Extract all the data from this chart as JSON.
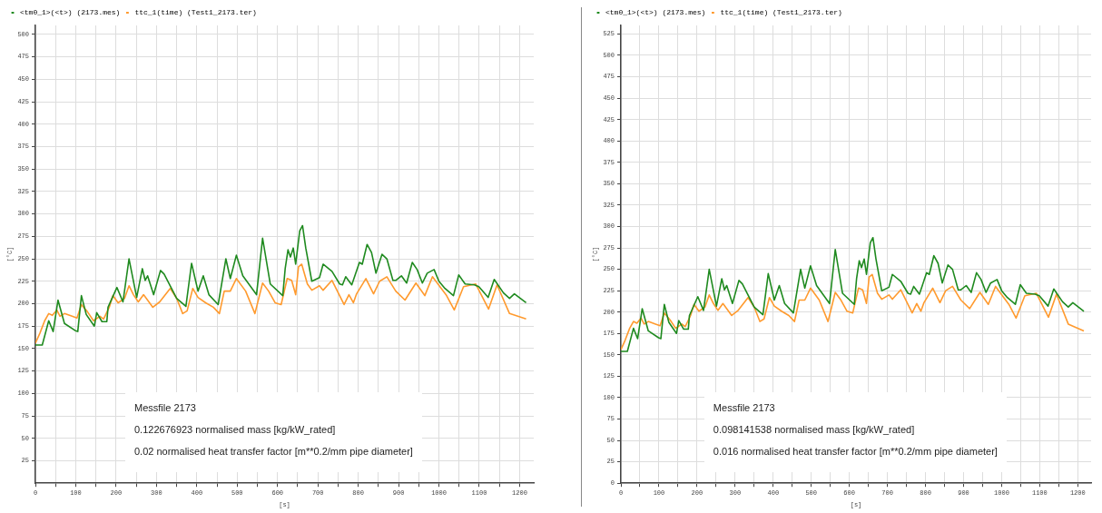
{
  "chart_data": [
    {
      "type": "line",
      "xlabel": "[s]",
      "ylabel": "[°C]",
      "legend": "top left",
      "grid": true,
      "marker": "none",
      "line_style": "solid",
      "xlim": [
        0,
        1235
      ],
      "ylim": [
        0,
        510
      ],
      "xticks": [
        0,
        {
          "value": 50,
          "label": null
        },
        100,
        {
          "value": 150,
          "label": null
        },
        200,
        {
          "value": 250,
          "label": null
        },
        300,
        {
          "value": 350,
          "label": null
        },
        400,
        {
          "value": 450,
          "label": null
        },
        500,
        {
          "value": 550,
          "label": null
        },
        600,
        {
          "value": 650,
          "label": null
        },
        700,
        {
          "value": 750,
          "label": null
        },
        800,
        {
          "value": 850,
          "label": null
        },
        900,
        {
          "value": 950,
          "label": null
        },
        1000,
        {
          "value": 1050,
          "label": null
        },
        1100,
        {
          "value": 1150,
          "label": null
        },
        1200
      ],
      "yticks": [
        25,
        50,
        75,
        100,
        125,
        150,
        175,
        200,
        225,
        250,
        275,
        300,
        325,
        350,
        375,
        400,
        425,
        450,
        475,
        500
      ],
      "annotations": [
        "Messfile 2173",
        "0.122676923 normalised mass [kg/kW_rated]",
        "0.02 normalised heat transfer factor [m**0.2/mm pipe diameter]"
      ],
      "series": [
        {
          "name": "<tm0_1>(<t>) (2173.mes)",
          "color": "#1f8a1f",
          "x": [
            0,
            17,
            33,
            44,
            56,
            72,
            99,
            105,
            114,
            126,
            146,
            152,
            165,
            177,
            180,
            202,
            217,
            232,
            251,
            265,
            272,
            278,
            293,
            310,
            319,
            350,
            373,
            387,
            403,
            416,
            430,
            453,
            472,
            483,
            498,
            514,
            548,
            563,
            582,
            613,
            619,
            626,
            632,
            639,
            645,
            655,
            662,
            670,
            685,
            704,
            713,
            735,
            754,
            761,
            769,
            784,
            803,
            810,
            822,
            833,
            844,
            859,
            871,
            886,
            893,
            907,
            920,
            934,
            946,
            959,
            971,
            988,
            1000,
            1015,
            1036,
            1049,
            1065,
            1088,
            1099,
            1122,
            1137,
            1160,
            1175,
            1187,
            1216
          ],
          "values": [
            154,
            154,
            181,
            169,
            204,
            178,
            170,
            169,
            209,
            188,
            175,
            190,
            180,
            180,
            196,
            218,
            202,
            250,
            207,
            239,
            226,
            231,
            210,
            237,
            233,
            206,
            197,
            245,
            214,
            231,
            210,
            199,
            250,
            228,
            254,
            231,
            210,
            273,
            222,
            209,
            239,
            260,
            252,
            262,
            244,
            281,
            287,
            262,
            225,
            229,
            244,
            236,
            222,
            221,
            230,
            221,
            246,
            244,
            266,
            257,
            234,
            255,
            250,
            226,
            226,
            231,
            223,
            246,
            238,
            223,
            234,
            238,
            225,
            217,
            209,
            232,
            222,
            221,
            219,
            207,
            227,
            212,
            206,
            211,
            201
          ]
        },
        {
          "name": "ttc_1(time) (Test1_2173.ter)",
          "color": "#ff9a2e",
          "x": [
            0,
            11,
            23,
            33,
            42,
            53,
            61,
            72,
            91,
            103,
            114,
            129,
            144,
            160,
            169,
            183,
            192,
            205,
            221,
            232,
            243,
            255,
            268,
            278,
            291,
            308,
            334,
            350,
            365,
            376,
            390,
            403,
            422,
            441,
            456,
            468,
            483,
            498,
            521,
            544,
            563,
            578,
            594,
            609,
            624,
            635,
            645,
            652,
            660,
            674,
            685,
            704,
            713,
            735,
            765,
            777,
            788,
            796,
            819,
            838,
            853,
            871,
            893,
            916,
            943,
            965,
            984,
            1019,
            1038,
            1061,
            1091,
            1123,
            1144,
            1175,
            1216
          ],
          "values": [
            156,
            167,
            181,
            189,
            187,
            193,
            186,
            189,
            186,
            184,
            199,
            191,
            181,
            186,
            183,
            196,
            209,
            201,
            206,
            220,
            210,
            202,
            210,
            204,
            196,
            202,
            217,
            206,
            189,
            192,
            217,
            207,
            201,
            196,
            189,
            214,
            214,
            228,
            214,
            189,
            223,
            214,
            201,
            199,
            228,
            226,
            210,
            241,
            244,
            222,
            215,
            220,
            215,
            226,
            199,
            210,
            201,
            211,
            228,
            211,
            225,
            230,
            214,
            204,
            223,
            209,
            230,
            209,
            193,
            219,
            222,
            194,
            221,
            189,
            183
          ]
        }
      ]
    },
    {
      "type": "line",
      "xlabel": "[s]",
      "ylabel": "[°C]",
      "legend": "top left",
      "grid": true,
      "marker": "none",
      "line_style": "solid",
      "xlim": [
        0,
        1235
      ],
      "ylim": [
        0,
        535
      ],
      "xticks": [
        0,
        {
          "value": 50,
          "label": null
        },
        100,
        {
          "value": 150,
          "label": null
        },
        200,
        {
          "value": 250,
          "label": null
        },
        300,
        {
          "value": 350,
          "label": null
        },
        400,
        {
          "value": 450,
          "label": null
        },
        500,
        {
          "value": 550,
          "label": null
        },
        600,
        {
          "value": 650,
          "label": null
        },
        700,
        {
          "value": 750,
          "label": null
        },
        800,
        {
          "value": 850,
          "label": null
        },
        900,
        {
          "value": 950,
          "label": null
        },
        1000,
        {
          "value": 1050,
          "label": null
        },
        1100,
        {
          "value": 1150,
          "label": null
        },
        1200
      ],
      "yticks": [
        0,
        25,
        50,
        75,
        100,
        125,
        150,
        175,
        200,
        225,
        250,
        275,
        300,
        325,
        350,
        375,
        400,
        425,
        450,
        475,
        500,
        525
      ],
      "annotations": [
        "Messfile 2173",
        "0.098141538 normalised mass [kg/kW_rated]",
        "0.016 normalised heat transfer factor [m**0.2/mm pipe diameter]"
      ],
      "series": [
        {
          "name": "<tm0_1>(<t>) (2173.mes)",
          "color": "#1f8a1f",
          "x": [
            0,
            17,
            33,
            44,
            56,
            72,
            99,
            105,
            114,
            126,
            146,
            152,
            165,
            177,
            180,
            202,
            217,
            232,
            251,
            265,
            272,
            278,
            293,
            310,
            319,
            350,
            373,
            387,
            403,
            416,
            430,
            453,
            472,
            483,
            498,
            514,
            548,
            563,
            582,
            613,
            619,
            626,
            632,
            639,
            645,
            655,
            662,
            670,
            685,
            704,
            713,
            735,
            754,
            761,
            769,
            784,
            803,
            810,
            822,
            833,
            844,
            859,
            871,
            886,
            893,
            907,
            920,
            934,
            946,
            959,
            971,
            988,
            1000,
            1015,
            1036,
            1049,
            1065,
            1088,
            1099,
            1122,
            1137,
            1160,
            1175,
            1187,
            1216
          ],
          "values": [
            154,
            154,
            181,
            169,
            204,
            178,
            170,
            169,
            209,
            188,
            175,
            190,
            180,
            180,
            196,
            218,
            202,
            250,
            207,
            239,
            226,
            231,
            210,
            237,
            233,
            206,
            197,
            245,
            214,
            231,
            210,
            199,
            250,
            228,
            254,
            231,
            210,
            273,
            222,
            209,
            239,
            260,
            252,
            262,
            244,
            281,
            287,
            262,
            225,
            229,
            244,
            236,
            222,
            221,
            230,
            221,
            246,
            244,
            266,
            257,
            234,
            255,
            250,
            226,
            226,
            231,
            223,
            246,
            238,
            223,
            234,
            238,
            225,
            217,
            209,
            232,
            222,
            221,
            219,
            207,
            227,
            212,
            206,
            211,
            201
          ]
        },
        {
          "name": "ttc_1(time) (Test1_2173.ter)",
          "color": "#ff9a2e",
          "x": [
            0,
            11,
            23,
            33,
            42,
            53,
            61,
            72,
            91,
            103,
            114,
            129,
            144,
            160,
            169,
            183,
            192,
            205,
            221,
            232,
            243,
            255,
            268,
            278,
            291,
            308,
            334,
            350,
            365,
            376,
            390,
            403,
            422,
            441,
            456,
            468,
            483,
            498,
            521,
            544,
            563,
            578,
            594,
            609,
            624,
            635,
            645,
            652,
            660,
            674,
            685,
            704,
            713,
            735,
            765,
            777,
            788,
            796,
            819,
            838,
            853,
            871,
            893,
            916,
            943,
            965,
            984,
            1019,
            1038,
            1061,
            1091,
            1123,
            1144,
            1175,
            1216
          ],
          "values": [
            156,
            167,
            181,
            189,
            187,
            193,
            186,
            189,
            186,
            184,
            199,
            191,
            181,
            186,
            183,
            196,
            209,
            201,
            206,
            220,
            210,
            202,
            210,
            204,
            196,
            202,
            217,
            206,
            189,
            192,
            217,
            207,
            201,
            196,
            189,
            214,
            214,
            228,
            214,
            189,
            223,
            214,
            201,
            199,
            228,
            226,
            210,
            241,
            244,
            222,
            215,
            220,
            215,
            226,
            199,
            210,
            201,
            211,
            228,
            211,
            225,
            230,
            214,
            204,
            223,
            209,
            230,
            209,
            193,
            219,
            222,
            194,
            221,
            186,
            178
          ]
        }
      ]
    }
  ]
}
